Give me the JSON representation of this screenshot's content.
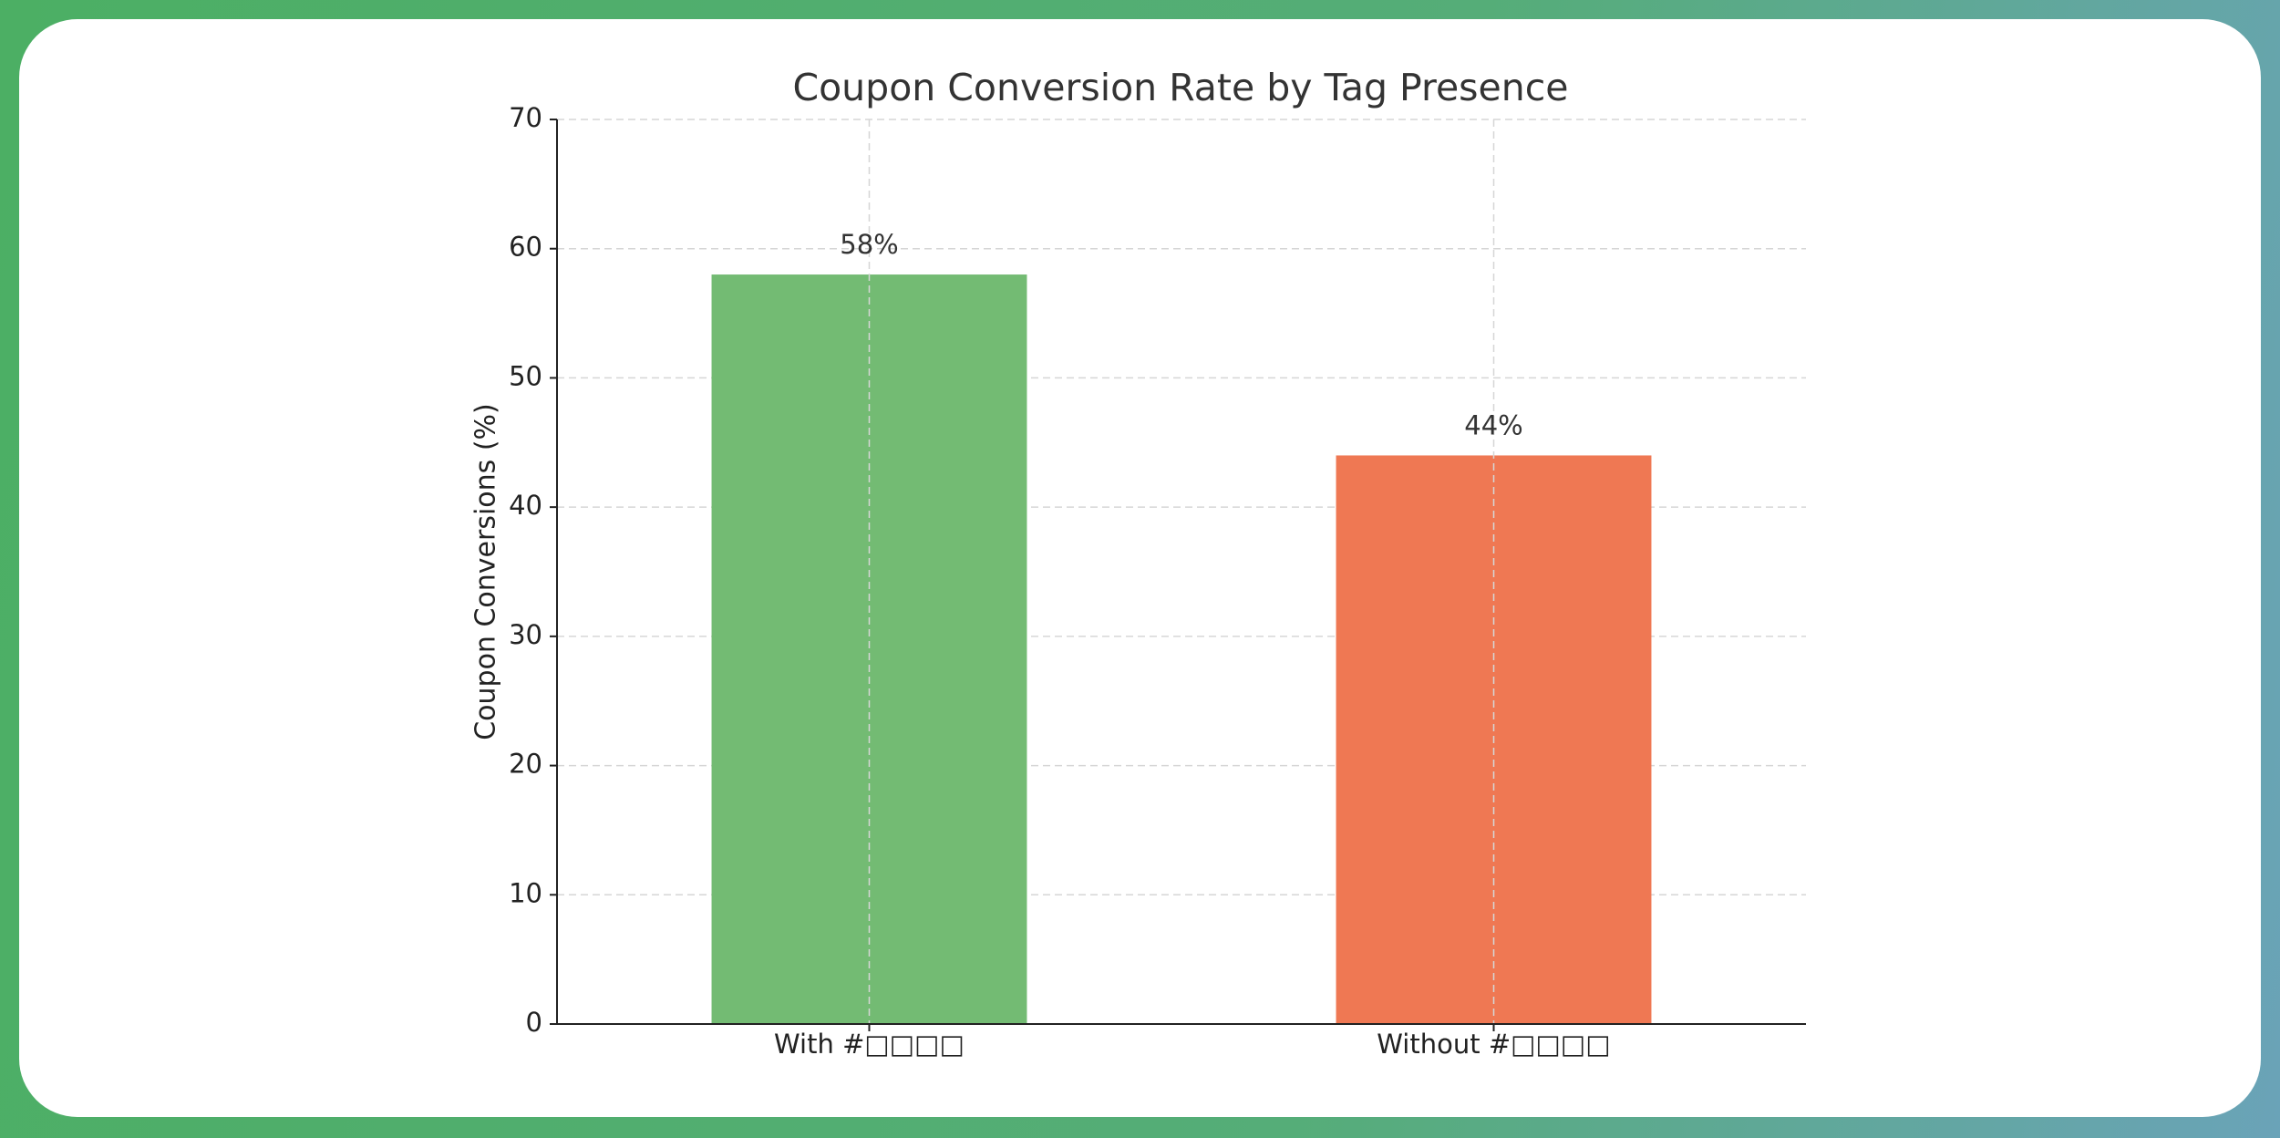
{
  "chart_data": {
    "type": "bar",
    "title": "Coupon Conversion Rate by Tag Presence",
    "y_label": "Coupon Conversions (%)",
    "categories": [
      "With #□□□□",
      "Without #□□□□"
    ],
    "values": [
      58,
      44
    ],
    "value_labels": [
      "58%",
      "44%"
    ],
    "colors": [
      "#73bb73",
      "#ef7853"
    ],
    "ylim": [
      0,
      70
    ],
    "yticks": [
      0,
      10,
      20,
      30,
      40,
      50,
      60,
      70
    ],
    "grid": true
  }
}
